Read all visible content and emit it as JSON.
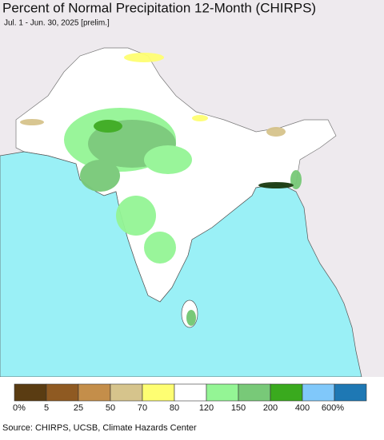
{
  "header": {
    "title": "Percent of Normal Precipitation 12-Month (CHIRPS)",
    "subtitle": "Jul. 1 - Jun. 30, 2025 [prelim.]"
  },
  "legend": {
    "colors": [
      "#5a3c12",
      "#8f5a22",
      "#c48e4a",
      "#d6c48c",
      "#fefe72",
      "#ffffff",
      "#94f595",
      "#78c978",
      "#3aaa1e",
      "#80c8fa",
      "#1e78b4"
    ],
    "labels": [
      "0%",
      "5",
      "25",
      "50",
      "70",
      "80",
      "120",
      "150",
      "200",
      "400",
      "600%"
    ]
  },
  "footer": {
    "source": "Source: CHIRPS, UCSB, Climate Hazards Center"
  }
}
